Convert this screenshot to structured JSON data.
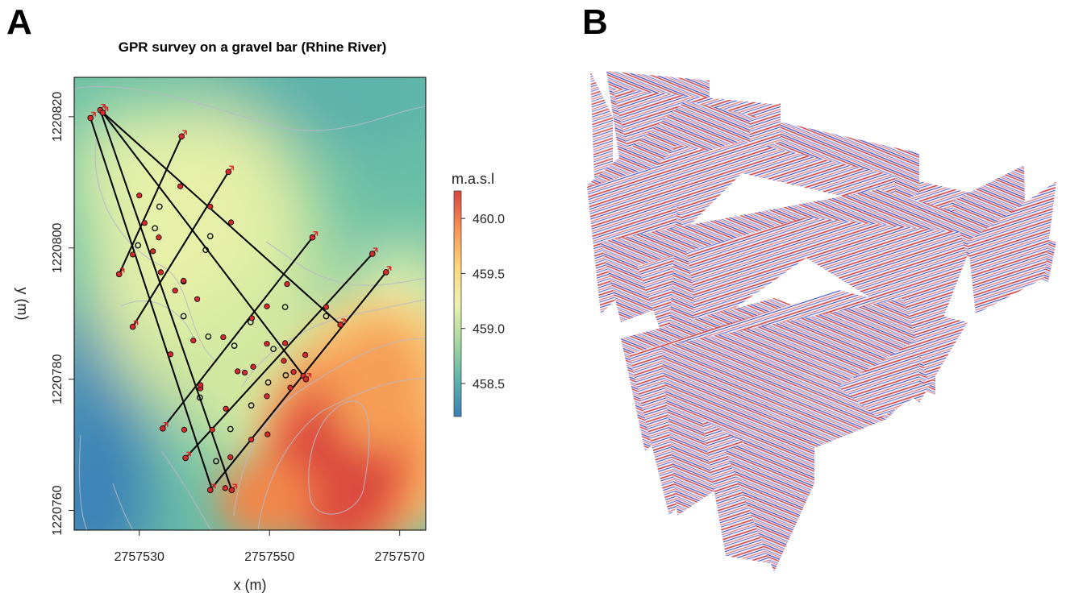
{
  "panel_a": {
    "letter": "A",
    "chart_data": {
      "type": "scatter",
      "title": "GPR survey on a gravel bar (Rhine River)",
      "xlabel": "x (m)",
      "ylabel": "y (m)",
      "xlim": [
        2757520,
        2757574
      ],
      "ylim": [
        2757520,
        2757574
      ],
      "ylim_y": [
        1220757,
        1220826
      ],
      "x_ticks": [
        {
          "value": 2757530,
          "label": "2757530"
        },
        {
          "value": 2757550,
          "label": "2757550"
        },
        {
          "value": 2757570,
          "label": "2757570"
        }
      ],
      "y_ticks": [
        {
          "value": 1220760,
          "label": "1220760"
        },
        {
          "value": 1220780,
          "label": "1220780"
        },
        {
          "value": 1220800,
          "label": "1220800"
        },
        {
          "value": 1220820,
          "label": "1220820"
        }
      ],
      "colorbar": {
        "title": "m.a.s.l",
        "range": [
          458.2,
          460.25
        ],
        "ticks": [
          "460.0",
          "459.5",
          "459.0",
          "458.5"
        ],
        "tick_values": [
          460.0,
          459.5,
          459.0,
          458.5
        ],
        "colors": [
          "#3a7fb8",
          "#5ab4aa",
          "#a8d7a0",
          "#eef2ad",
          "#fdd77f",
          "#f89554",
          "#d8443f"
        ]
      },
      "lines": [
        {
          "start": [
            2757522.5,
            1220819.8
          ],
          "end": [
            2757541.2,
            1220763.1
          ]
        },
        {
          "start": [
            2757524.0,
            1220821.0
          ],
          "end": [
            2757544.2,
            1220763.1
          ]
        },
        {
          "start": [
            2757524.0,
            1220821.0
          ],
          "end": [
            2757560.9,
            1220788.3
          ]
        },
        {
          "start": [
            2757524.4,
            1220820.6
          ],
          "end": [
            2757555.6,
            1220780.0
          ]
        },
        {
          "start": [
            2757526.9,
            1220796.0
          ],
          "end": [
            2757536.5,
            1220817.0
          ]
        },
        {
          "start": [
            2757529.0,
            1220788.0
          ],
          "end": [
            2757543.7,
            1220811.6
          ]
        },
        {
          "start": [
            2757533.6,
            1220772.5
          ],
          "end": [
            2757556.6,
            1220801.6
          ]
        },
        {
          "start": [
            2757537.1,
            1220768.0
          ],
          "end": [
            2757565.8,
            1220799.1
          ]
        },
        {
          "start": [
            2757540.9,
            1220763.1
          ],
          "end": [
            2757567.9,
            1220796.3
          ]
        }
      ],
      "endpoints": [
        [
          2757522.5,
          1220819.8
        ],
        [
          2757524.0,
          1220821.0
        ],
        [
          2757524.4,
          1220820.6
        ],
        [
          2757536.5,
          1220817.0
        ],
        [
          2757543.7,
          1220811.6
        ],
        [
          2757556.6,
          1220801.6
        ],
        [
          2757565.8,
          1220799.1
        ],
        [
          2757567.9,
          1220796.3
        ],
        [
          2757526.9,
          1220796.0
        ],
        [
          2757529.0,
          1220788.0
        ],
        [
          2757533.6,
          1220772.5
        ],
        [
          2757537.1,
          1220768.0
        ],
        [
          2757540.9,
          1220763.1
        ],
        [
          2757544.2,
          1220763.1
        ],
        [
          2757560.9,
          1220788.3
        ],
        [
          2757555.6,
          1220780.0
        ]
      ],
      "markers": [
        [
          2757530.0,
          1220808.0
        ],
        [
          2757530.8,
          1220803.8
        ],
        [
          2757529.0,
          1220799.0
        ],
        [
          2757532.1,
          1220799.5
        ],
        [
          2757533.3,
          1220796.3
        ],
        [
          2757535.5,
          1220793.5
        ],
        [
          2757536.8,
          1220795.0
        ],
        [
          2757538.9,
          1220792.2
        ],
        [
          2757540.9,
          1220806.3
        ],
        [
          2757538.3,
          1220785.9
        ],
        [
          2757534.8,
          1220783.8
        ],
        [
          2757539.4,
          1220778.6
        ],
        [
          2757541.2,
          1220772.3
        ],
        [
          2757547.5,
          1220781.9
        ],
        [
          2757549.6,
          1220785.4
        ],
        [
          2757552.2,
          1220782.8
        ],
        [
          2757549.6,
          1220777.4
        ],
        [
          2757553.7,
          1220781.1
        ],
        [
          2757553.2,
          1220778.7
        ],
        [
          2757549.7,
          1220771.6
        ],
        [
          2757545.1,
          1220781.2
        ],
        [
          2757555.2,
          1220780.5
        ],
        [
          2757547.2,
          1220770.8
        ],
        [
          2757543.3,
          1220775.5
        ],
        [
          2757542.9,
          1220786.4
        ],
        [
          2757547.3,
          1220789.3
        ],
        [
          2757549.6,
          1220791.1
        ],
        [
          2757552.7,
          1220794.5
        ],
        [
          2757558.7,
          1220791.0
        ],
        [
          2757533.0,
          1220801.6
        ],
        [
          2757544.1,
          1220803.9
        ],
        [
          2757536.3,
          1220809.4
        ],
        [
          2757539.4,
          1220779.1
        ],
        [
          2757546.2,
          1220781.0
        ],
        [
          2757552.4,
          1220785.5
        ],
        [
          2757555.5,
          1220783.7
        ],
        [
          2757544.0,
          1220768.1
        ],
        [
          2757536.9,
          1220772.3
        ],
        [
          2757543.2,
          1220763.4
        ]
      ],
      "junctions": [
        [
          2757533.1,
          1220806.3
        ],
        [
          2757532.4,
          1220803.0
        ],
        [
          2757529.8,
          1220800.4
        ],
        [
          2757536.8,
          1220794.9
        ],
        [
          2757540.2,
          1220799.7
        ],
        [
          2757540.9,
          1220801.8
        ],
        [
          2757536.8,
          1220789.6
        ],
        [
          2757540.6,
          1220786.5
        ],
        [
          2757544.6,
          1220785.1
        ],
        [
          2757547.1,
          1220788.7
        ],
        [
          2757552.4,
          1220791.0
        ],
        [
          2757558.7,
          1220789.6
        ],
        [
          2757550.6,
          1220784.6
        ],
        [
          2757552.5,
          1220780.6
        ],
        [
          2757549.8,
          1220779.5
        ],
        [
          2757547.2,
          1220776.0
        ],
        [
          2757544.0,
          1220772.4
        ],
        [
          2757539.3,
          1220777.2
        ],
        [
          2757541.8,
          1220767.5
        ]
      ]
    }
  },
  "panel_b": {
    "letter": "B"
  }
}
